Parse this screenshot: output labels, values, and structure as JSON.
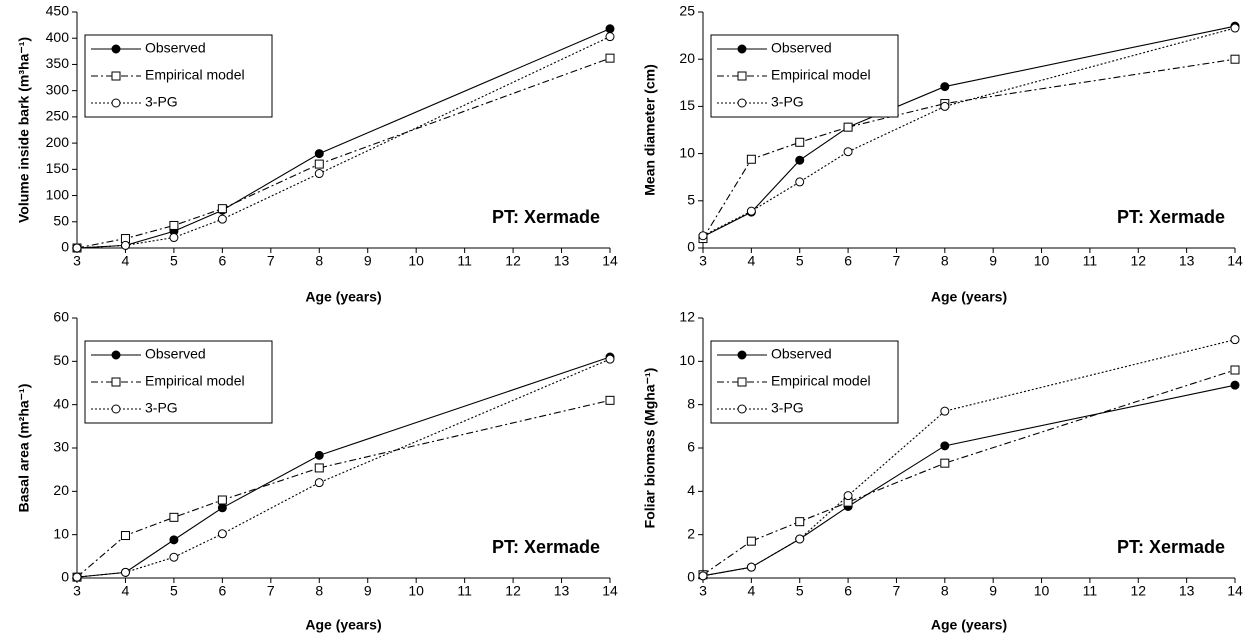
{
  "chart_data": [
    {
      "type": "line",
      "xlabel": "Age (years)",
      "ylabel": "Volume inside bark (m³ha⁻¹)",
      "annotation": "PT: Xermade",
      "x": [
        3,
        4,
        5,
        6,
        8,
        14
      ],
      "xlim": [
        3,
        14
      ],
      "xticks": [
        3,
        4,
        5,
        6,
        7,
        8,
        9,
        10,
        11,
        12,
        13,
        14
      ],
      "ylim": [
        0,
        450
      ],
      "yticks": [
        0,
        50,
        100,
        150,
        200,
        250,
        300,
        350,
        400,
        450
      ],
      "legend": "upper left",
      "series": [
        {
          "name": "Observed",
          "color": "#000000",
          "dash": "solid",
          "marker": "filled-circle",
          "values": [
            0,
            5,
            32,
            72,
            180,
            418
          ]
        },
        {
          "name": "Empirical model",
          "color": "#000000",
          "dash": "dashdot",
          "marker": "open-square",
          "values": [
            0,
            18,
            43,
            75,
            160,
            362
          ]
        },
        {
          "name": "3-PG",
          "color": "#000000",
          "dash": "dotted",
          "marker": "open-circle",
          "values": [
            0,
            5,
            20,
            55,
            142,
            403
          ]
        }
      ]
    },
    {
      "type": "line",
      "xlabel": "Age (years)",
      "ylabel": "Mean diameter (cm)",
      "annotation": "PT: Xermade",
      "x": [
        3,
        4,
        5,
        6,
        8,
        14
      ],
      "xlim": [
        3,
        14
      ],
      "xticks": [
        3,
        4,
        5,
        6,
        7,
        8,
        9,
        10,
        11,
        12,
        13,
        14
      ],
      "ylim": [
        0,
        25
      ],
      "yticks": [
        0,
        5,
        10,
        15,
        20,
        25
      ],
      "legend": "upper left",
      "series": [
        {
          "name": "Observed",
          "color": "#000000",
          "dash": "solid",
          "marker": "filled-circle",
          "values": [
            1.2,
            3.8,
            9.3,
            12.8,
            17.1,
            23.5
          ]
        },
        {
          "name": "Empirical model",
          "color": "#000000",
          "dash": "dashdot",
          "marker": "open-square",
          "values": [
            1.0,
            9.4,
            11.2,
            12.8,
            15.3,
            20.0
          ]
        },
        {
          "name": "3-PG",
          "color": "#000000",
          "dash": "dotted",
          "marker": "open-circle",
          "values": [
            1.3,
            3.9,
            7.0,
            10.2,
            15.0,
            23.3
          ]
        }
      ]
    },
    {
      "type": "line",
      "xlabel": "Age (years)",
      "ylabel": "Basal area (m²ha⁻¹)",
      "annotation": "PT: Xermade",
      "x": [
        3,
        4,
        5,
        6,
        8,
        14
      ],
      "xlim": [
        3,
        14
      ],
      "xticks": [
        3,
        4,
        5,
        6,
        7,
        8,
        9,
        10,
        11,
        12,
        13,
        14
      ],
      "ylim": [
        0,
        60
      ],
      "yticks": [
        0,
        10,
        20,
        30,
        40,
        50,
        60
      ],
      "legend": "upper left",
      "series": [
        {
          "name": "Observed",
          "color": "#000000",
          "dash": "solid",
          "marker": "filled-circle",
          "values": [
            0.2,
            1.3,
            8.8,
            16.2,
            28.3,
            51.0
          ]
        },
        {
          "name": "Empirical model",
          "color": "#000000",
          "dash": "dashdot",
          "marker": "open-square",
          "values": [
            0.2,
            9.8,
            14.0,
            18.0,
            25.4,
            41.0
          ]
        },
        {
          "name": "3-PG",
          "color": "#000000",
          "dash": "dotted",
          "marker": "open-circle",
          "values": [
            0.2,
            1.3,
            4.8,
            10.2,
            22.0,
            50.5
          ]
        }
      ]
    },
    {
      "type": "line",
      "xlabel": "Age (years)",
      "ylabel": "Foliar biomass (Mgha⁻¹)",
      "annotation": "PT: Xermade",
      "x": [
        3,
        4,
        5,
        6,
        8,
        14
      ],
      "xlim": [
        3,
        14
      ],
      "xticks": [
        3,
        4,
        5,
        6,
        7,
        8,
        9,
        10,
        11,
        12,
        13,
        14
      ],
      "ylim": [
        0,
        12
      ],
      "yticks": [
        0,
        2,
        4,
        6,
        8,
        10,
        12
      ],
      "legend": "upper left",
      "series": [
        {
          "name": "Observed",
          "color": "#000000",
          "dash": "solid",
          "marker": "filled-circle",
          "values": [
            0.1,
            0.5,
            1.8,
            3.3,
            6.1,
            8.9
          ]
        },
        {
          "name": "Empirical model",
          "color": "#000000",
          "dash": "dashdot",
          "marker": "open-square",
          "values": [
            0.15,
            1.7,
            2.6,
            3.5,
            5.3,
            9.6
          ]
        },
        {
          "name": "3-PG",
          "color": "#000000",
          "dash": "dotted",
          "marker": "open-circle",
          "values": [
            0.1,
            0.5,
            1.8,
            3.8,
            7.7,
            11.0
          ]
        }
      ]
    }
  ]
}
